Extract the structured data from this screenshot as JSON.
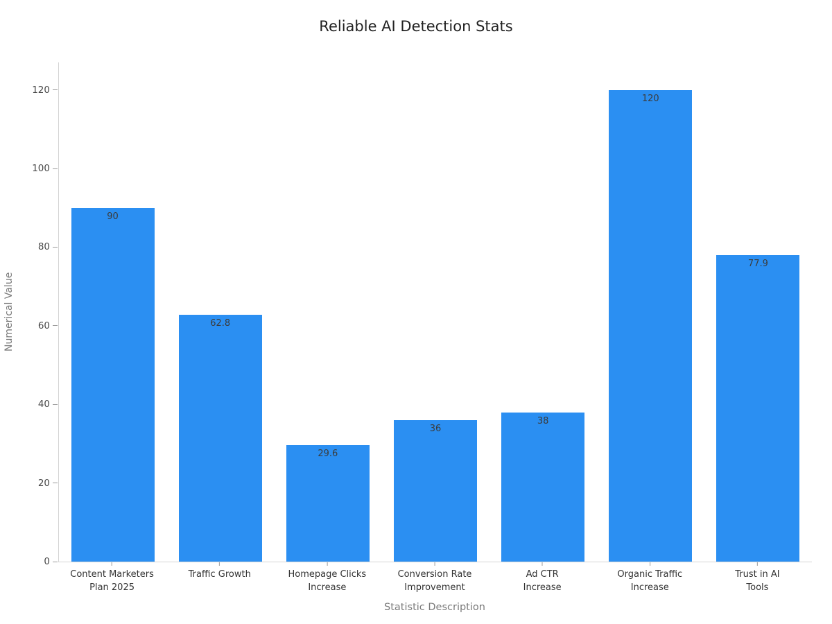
{
  "chart_data": {
    "type": "bar",
    "title": "Reliable AI Detection Stats",
    "xlabel": "Statistic Description",
    "ylabel": "Numerical Value",
    "categories": [
      "Content Marketers\nPlan 2025",
      "Traffic Growth",
      "Homepage Clicks\nIncrease",
      "Conversion Rate\nImprovement",
      "Ad CTR\nIncrease",
      "Organic Traffic\nIncrease",
      "Trust in AI\nTools"
    ],
    "values": [
      90,
      62.8,
      29.6,
      36,
      38,
      120,
      77.9
    ],
    "value_labels": [
      "90",
      "62.8",
      "29.6",
      "36",
      "38",
      "120",
      "77.9"
    ],
    "yticks": [
      0,
      20,
      40,
      60,
      80,
      100,
      120
    ],
    "ylim": [
      0,
      127
    ],
    "grid": false,
    "legend": "none",
    "bar_color": "#2b8ff2",
    "value_label_color": "#3b3b3b",
    "axis_color": "#d4d4d4",
    "tick_color": "#9a9a9a",
    "tick_label_color": "#474747",
    "axis_title_color": "#7a7a7a",
    "title_color": "#222222"
  }
}
